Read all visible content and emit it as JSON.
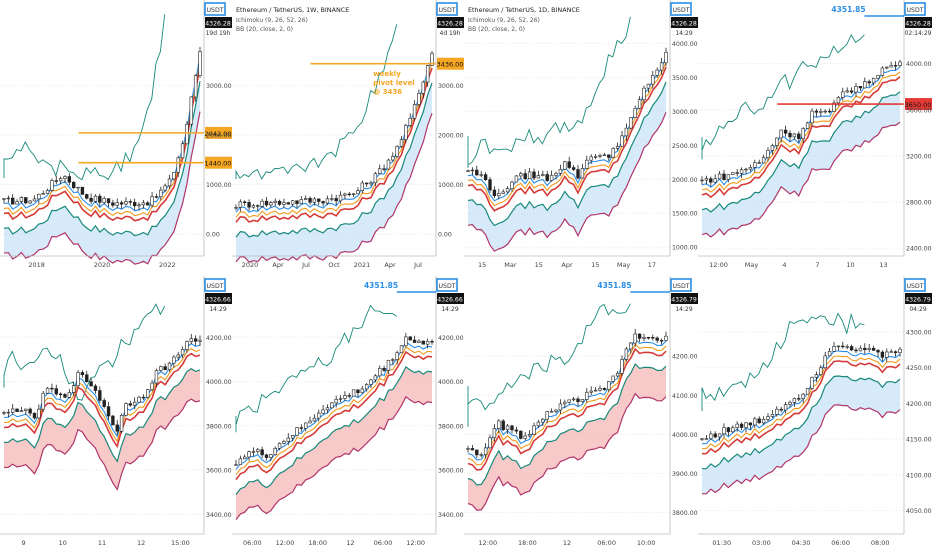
{
  "colors": {
    "green": "#17897a",
    "red": "#d63b3b",
    "orange": "#f09a1a",
    "blue": "#2a8ee6",
    "magenta": "#b0356a",
    "cloud_green": "#9fd6cd",
    "cloud_blue": "#bcdcf5",
    "cloud_red": "#f4a5a5",
    "label_blue": "#2a8ee6",
    "label_orange": "#f5a623",
    "label_red": "#e53935"
  },
  "chart_data": [
    {
      "type": "line",
      "symbol": "USDT",
      "price_label": "4326.28",
      "countdown": "19d 19h",
      "x_ticks": [
        "2018",
        "2020",
        "2022"
      ],
      "y_ticks": [
        "0.00",
        "1000.00",
        "2000.00",
        "3000.00"
      ],
      "ylim": [
        -400,
        4600
      ],
      "levels": [
        {
          "value": 2042,
          "label": "2042.00",
          "color": "orange"
        },
        {
          "value": 1440,
          "label": "1440.00",
          "color": "orange"
        }
      ],
      "annotations": []
    },
    {
      "type": "line",
      "symbol": "USDT",
      "title": "Ethereum / TetherUS, 1W, BINANCE",
      "indicator_1": "Ichimoku (9, 26, 52, 26)",
      "indicator_2": "BB (20, close, 2, 0)",
      "price_label": "4326.28",
      "countdown": "4d 19h",
      "x_ticks": [
        "2020",
        "Apr",
        "Jul",
        "Oct",
        "2021",
        "Apr",
        "Jul"
      ],
      "y_ticks": [
        "0.00",
        "1000.00",
        "2000.00",
        "3000.00"
      ],
      "ylim": [
        -400,
        4600
      ],
      "levels": [
        {
          "value": 3436,
          "label": "3436.00",
          "color": "orange"
        }
      ],
      "annotations": [
        {
          "text_1": "weekly",
          "text_2": "pivot level",
          "text_3": "@ 3436"
        }
      ]
    },
    {
      "type": "line",
      "symbol": "USDT",
      "title": "Ethereum / TetherUS, 1D, BINANCE",
      "indicator_1": "Ichimoku (9, 26, 52, 26)",
      "indicator_2": "BB (20, close, 2, 0)",
      "price_label": "4326.28",
      "countdown": "14:29",
      "x_ticks": [
        "15",
        "Mar",
        "15",
        "Apr",
        "15",
        "May",
        "17"
      ],
      "y_ticks": [
        "1000.00",
        "1500.00",
        "2000.00",
        "2500.00",
        "3000.00",
        "3500.00",
        "4000.00"
      ],
      "ylim": [
        900,
        4550
      ],
      "levels": [],
      "annotations": []
    },
    {
      "type": "line",
      "symbol": "USDT",
      "price_label": "4326.28",
      "countdown": "02:14:29",
      "peak_label": "4351.85",
      "x_ticks": [
        "12:00",
        "May",
        "4",
        "7",
        "10",
        "13"
      ],
      "y_ticks": [
        "2400.00",
        "2800.00",
        "3200.00",
        "3600.00",
        "4000.00"
      ],
      "ylim": [
        2350,
        4500
      ],
      "levels": [
        {
          "value": 3650,
          "label": "3650.00",
          "color": "red"
        }
      ],
      "annotations": []
    },
    {
      "type": "line",
      "symbol": "USDT",
      "price_label": "4326.66",
      "countdown": "14:29",
      "x_ticks": [
        "9",
        "10",
        "11",
        "12",
        "15:00"
      ],
      "y_ticks": [
        "3400.00",
        "3600.00",
        "3800.00",
        "4000.00",
        "4200.00"
      ],
      "ylim": [
        3320,
        4450
      ],
      "levels": [],
      "annotations": []
    },
    {
      "type": "line",
      "symbol": "USDT",
      "price_label": "4326.66",
      "countdown": "14:29",
      "peak_label": "4351.85",
      "x_ticks": [
        "06:00",
        "12:00",
        "18:00",
        "12",
        "06:00",
        "12:00"
      ],
      "y_ticks": [
        "3400.00",
        "3600.00",
        "3800.00",
        "4000.00",
        "4200.00"
      ],
      "ylim": [
        3320,
        4450
      ],
      "levels": [],
      "annotations": []
    },
    {
      "type": "line",
      "symbol": "USDT",
      "price_label": "4326.79",
      "countdown": "14:29",
      "peak_label": "4351.85",
      "x_ticks": [
        "12:00",
        "18:00",
        "12",
        "06:00",
        "10:00"
      ],
      "y_ticks": [
        "3800.00",
        "3900.00",
        "4000.00",
        "4100.00",
        "4200.00"
      ],
      "ylim": [
        3750,
        4390
      ],
      "levels": [],
      "annotations": []
    },
    {
      "type": "line",
      "symbol": "USDT",
      "price_label": "4326.79",
      "countdown": "04:29",
      "x_ticks": [
        "01:30",
        "03:00",
        "04:30",
        "06:00",
        "08:00"
      ],
      "y_ticks": [
        "4050.00",
        "4100.00",
        "4150.00",
        "4200.00",
        "4250.00",
        "4300.00"
      ],
      "ylim": [
        4020,
        4370
      ],
      "levels": [],
      "annotations": []
    }
  ]
}
